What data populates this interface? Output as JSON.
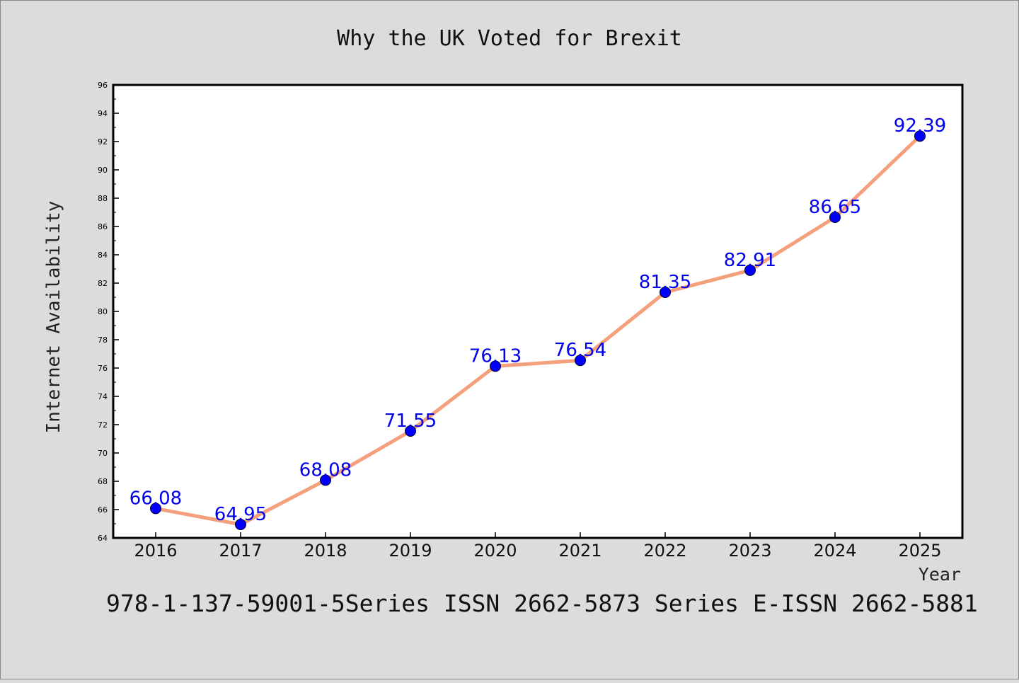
{
  "chart_data": {
    "type": "line",
    "title": "Why the UK Voted for Brexit",
    "xlabel": "Year",
    "ylabel": "Internet Availability",
    "footer": "978-1-137-59001-5Series ISSN 2662-5873 Series E-ISSN 2662-5881",
    "categories": [
      "2016",
      "2017",
      "2018",
      "2019",
      "2020",
      "2021",
      "2022",
      "2023",
      "2024",
      "2025"
    ],
    "values": [
      66.08,
      64.95,
      68.08,
      71.55,
      76.13,
      76.54,
      81.35,
      82.91,
      86.65,
      92.39
    ],
    "value_labels": [
      "66.08",
      "64.95",
      "68.08",
      "71.55",
      "76.13",
      "76.54",
      "81.35",
      "82.91",
      "86.65",
      "92.39"
    ],
    "ylim": [
      64,
      96
    ],
    "yticks": [
      "64",
      "66",
      "68",
      "70",
      "72",
      "74",
      "76",
      "78",
      "80",
      "82",
      "84",
      "86",
      "88",
      "90",
      "92",
      "94",
      "96"
    ],
    "grid": false,
    "legend": "none",
    "colors": {
      "background": "#dcdcdc",
      "plot_background": "#ffffff",
      "line": "#f4a07c",
      "marker": "#0000ff",
      "label": "#0000ee"
    }
  }
}
